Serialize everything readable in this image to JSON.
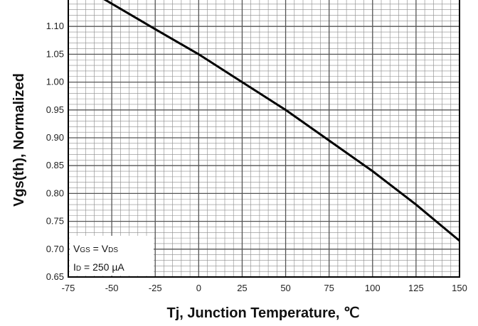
{
  "chart_data": {
    "type": "line",
    "title": "",
    "xlabel": "Tj, Junction Temperature, ℃",
    "ylabel": "Vgs(th),  Normalized",
    "xlim": [
      -75,
      150
    ],
    "ylim": [
      0.65,
      1.15
    ],
    "x_ticks": [
      "-75",
      "-50",
      "-25",
      "0",
      "25",
      "50",
      "75",
      "100",
      "125",
      "150"
    ],
    "y_ticks": [
      "0.65",
      "0.70",
      "0.75",
      "0.80",
      "0.85",
      "0.90",
      "0.95",
      "1.00",
      "1.05",
      "1.10"
    ],
    "grid": true,
    "series": [
      {
        "x": [
          -55,
          -25,
          0,
          25,
          50,
          75,
          100,
          125,
          150
        ],
        "y": [
          1.15,
          1.095,
          1.05,
          1.0,
          0.95,
          0.895,
          0.84,
          0.78,
          0.715
        ]
      }
    ],
    "annotation": {
      "line1": {
        "main": "V",
        "sub": "GS",
        "mid": " = V",
        "sub2": "DS"
      },
      "line2": {
        "main": "I",
        "sub": "D",
        "rest": " = 250 µA"
      }
    },
    "line_color": "#000000",
    "grid_color": "#555555"
  }
}
